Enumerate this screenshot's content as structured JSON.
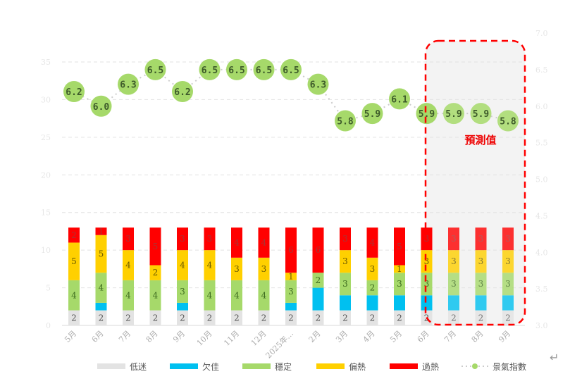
{
  "chart_data": {
    "type": "bar+line",
    "categories": [
      "5月",
      "6月",
      "7月",
      "8月",
      "9月",
      "10月",
      "11月",
      "12月",
      "2025年…",
      "2月",
      "3月",
      "4月",
      "5月",
      "6月",
      "7月",
      "8月",
      "9月"
    ],
    "series": [
      {
        "name": "低迷",
        "color": "#e3e3e3",
        "values": [
          2,
          2,
          2,
          2,
          2,
          2,
          2,
          2,
          2,
          2,
          2,
          2,
          2,
          2,
          2,
          2,
          2
        ]
      },
      {
        "name": "欠佳",
        "color": "#00c0f0",
        "values": [
          0,
          1,
          0,
          0,
          1,
          0,
          0,
          0,
          1,
          3,
          2,
          2,
          2,
          2,
          2,
          2,
          2
        ]
      },
      {
        "name": "穩定",
        "color": "#a6d96a",
        "values": [
          4,
          4,
          4,
          4,
          3,
          4,
          4,
          4,
          3,
          2,
          3,
          2,
          3,
          3,
          3,
          3,
          3
        ]
      },
      {
        "name": "偏熱",
        "color": "#ffd000",
        "values": [
          5,
          5,
          4,
          2,
          4,
          4,
          3,
          3,
          1,
          0,
          3,
          3,
          1,
          3,
          3,
          3,
          3
        ]
      },
      {
        "name": "過熱",
        "color": "#ff0000",
        "values": [
          2,
          1,
          3,
          5,
          3,
          3,
          4,
          4,
          6,
          6,
          3,
          4,
          5,
          3,
          3,
          3,
          3
        ]
      }
    ],
    "line": {
      "name": "景氣指數",
      "color": "#a6d96a",
      "values": [
        6.2,
        6.0,
        6.3,
        6.5,
        6.2,
        6.5,
        6.5,
        6.5,
        6.5,
        6.3,
        5.8,
        5.9,
        6.1,
        5.9,
        5.9,
        5.9,
        5.8
      ]
    },
    "y_left": {
      "ticks": [
        "0",
        "5",
        "10",
        "15",
        "20",
        "25",
        "30",
        "35"
      ],
      "range": [
        0,
        35
      ]
    },
    "y_right": {
      "ticks": [
        "3.0",
        "3.5",
        "4.0",
        "4.5",
        "5.0",
        "5.5",
        "6.0",
        "6.5",
        "7.0"
      ],
      "range": [
        3.0,
        7.0
      ]
    },
    "forecast_label": "預測值",
    "forecast_start_index": 13,
    "grid": true,
    "legend_position": "bottom"
  }
}
